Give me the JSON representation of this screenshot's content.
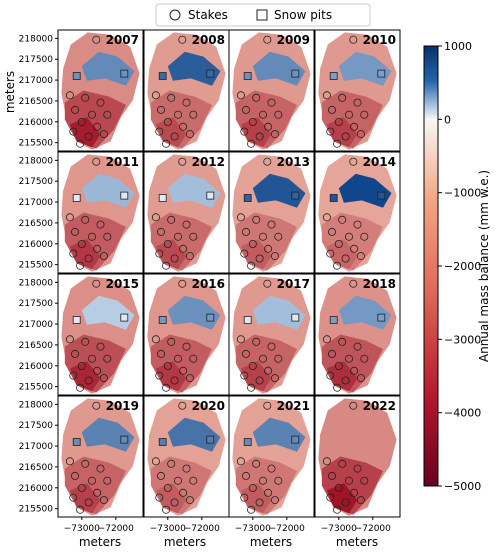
{
  "chart_data": {
    "type": "contour-map-grid",
    "legend": {
      "placement": "top-center",
      "items": [
        {
          "label": "Stakes",
          "marker": "circle"
        },
        {
          "label": "Snow pits",
          "marker": "square"
        }
      ]
    },
    "panels": [
      {
        "year": "2007"
      },
      {
        "year": "2008"
      },
      {
        "year": "2009"
      },
      {
        "year": "2010"
      },
      {
        "year": "2011"
      },
      {
        "year": "2012"
      },
      {
        "year": "2013"
      },
      {
        "year": "2014"
      },
      {
        "year": "2015"
      },
      {
        "year": "2016"
      },
      {
        "year": "2017"
      },
      {
        "year": "2018"
      },
      {
        "year": "2019"
      },
      {
        "year": "2020"
      },
      {
        "year": "2021"
      },
      {
        "year": "2022"
      }
    ],
    "x_axis": {
      "label": "meters",
      "ticks": [
        "−73000",
        "−72000"
      ],
      "tick_values": [
        -73000,
        -72000
      ]
    },
    "y_axis": {
      "label": "meters",
      "ticks": [
        "218000",
        "217500",
        "217000",
        "216500",
        "216000",
        "215500"
      ],
      "tick_values": [
        218000,
        217500,
        217000,
        216500,
        216000,
        215500
      ]
    },
    "colorbar": {
      "label": "Annual mass balance (mm w.e.)",
      "range": [
        -5000,
        1000
      ],
      "ticks": [
        "1000",
        "0",
        "−1000",
        "−2000",
        "−3000",
        "−4000",
        "−5000"
      ],
      "tick_values": [
        1000,
        0,
        -1000,
        -2000,
        -3000,
        -4000,
        -5000
      ],
      "colormap": "RdBu",
      "colors": {
        "max": "#08306b",
        "zero": "#f7f7f7",
        "min": "#67001f"
      }
    }
  }
}
